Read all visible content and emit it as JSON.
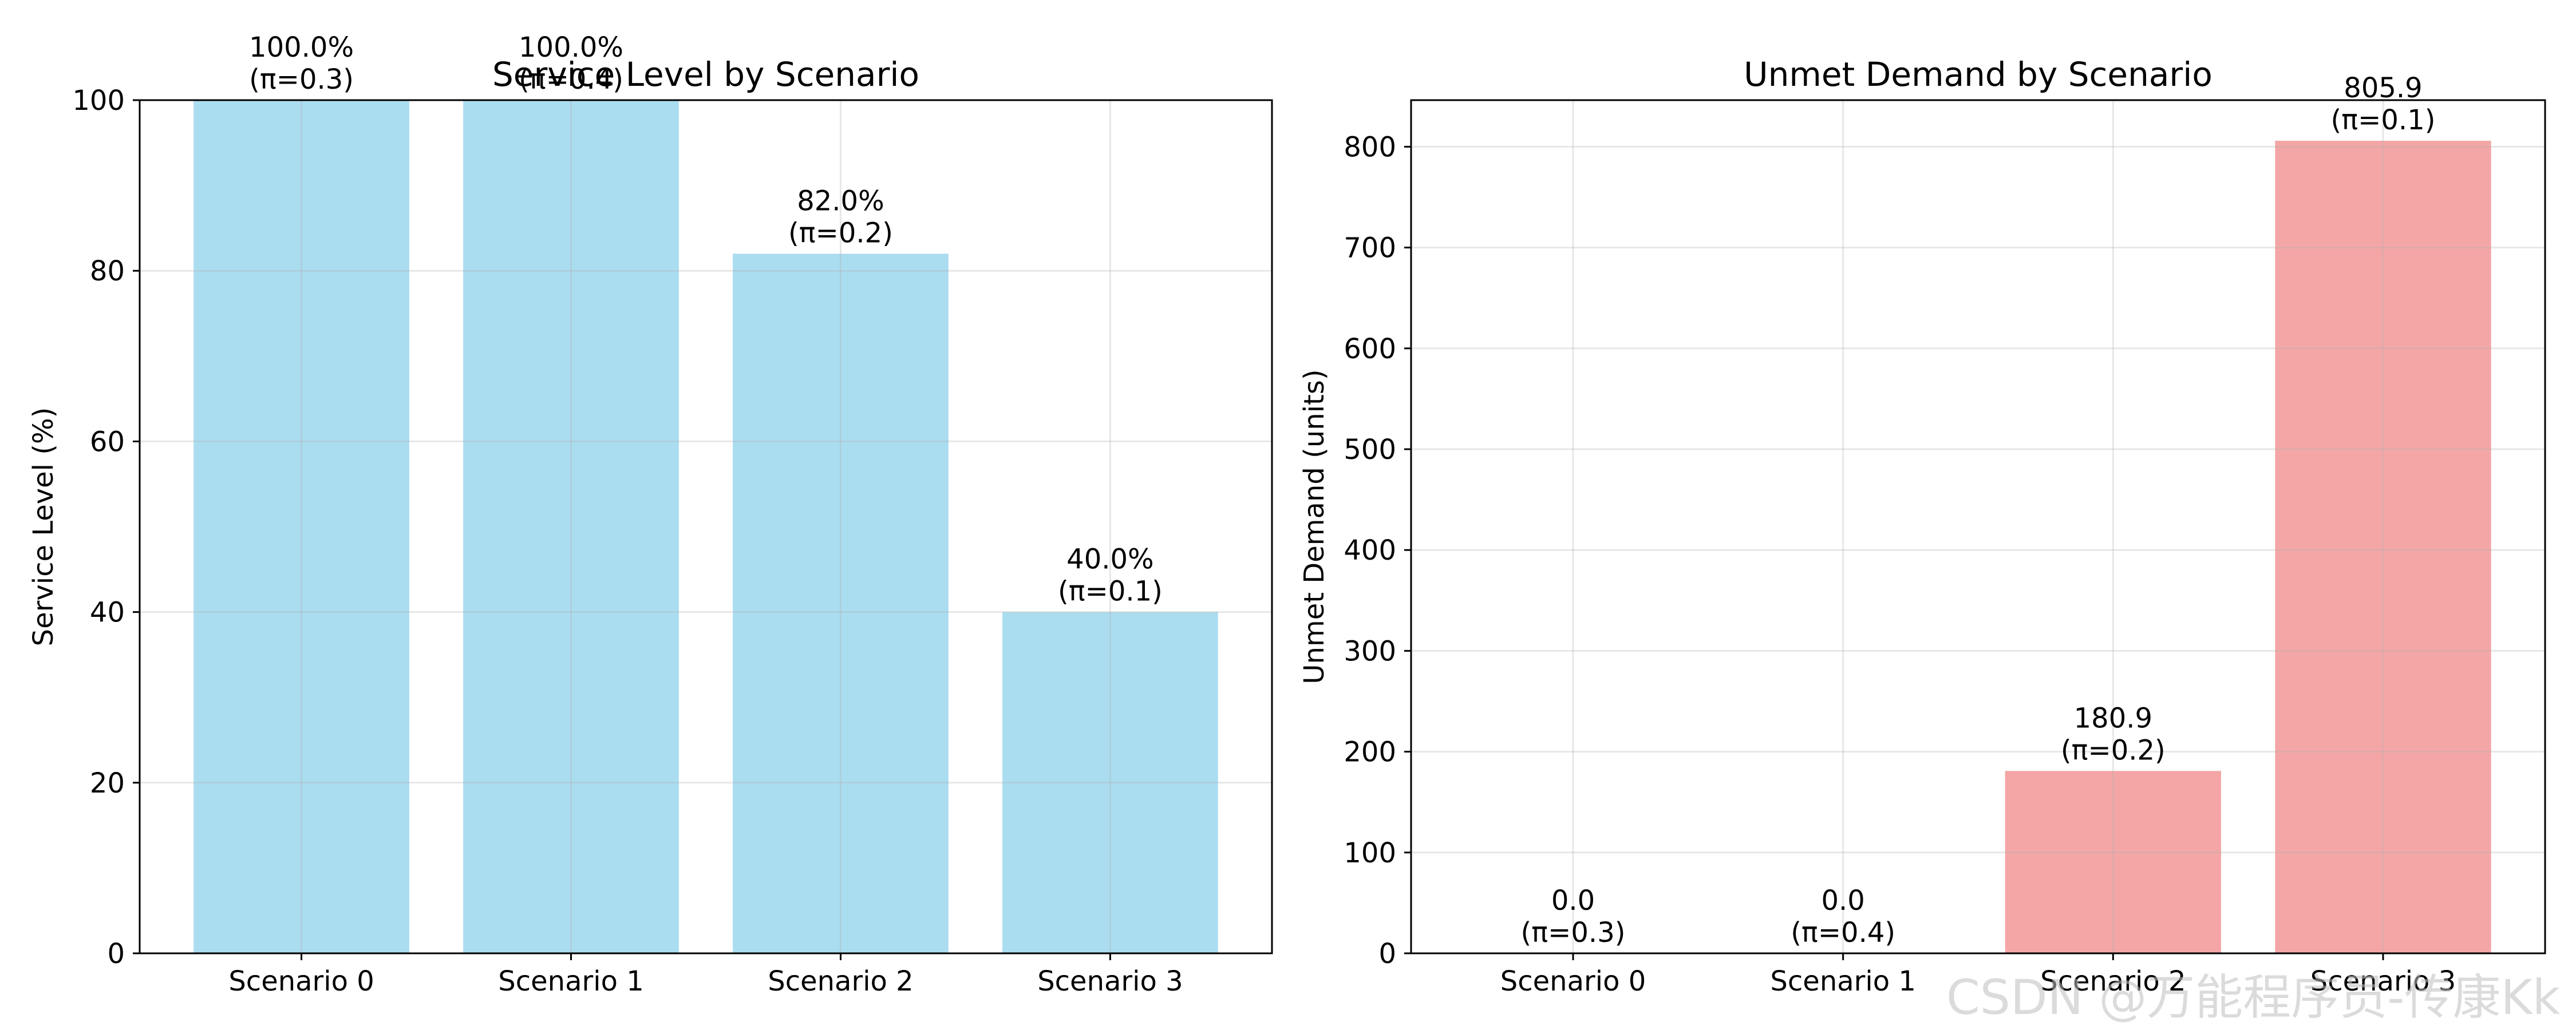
{
  "chart_data": [
    {
      "type": "bar",
      "title": "Service Level by Scenario",
      "xlabel": "",
      "ylabel": "Service Level (%)",
      "categories": [
        "Scenario 0",
        "Scenario 1",
        "Scenario 2",
        "Scenario 3"
      ],
      "values": [
        100,
        100,
        82,
        40
      ],
      "bar_labels": [
        "100.0%\n(π=0.3)",
        "100.0%\n(π=0.4)",
        "82.0%\n(π=0.2)",
        "40.0%\n(π=0.1)"
      ],
      "ylim": [
        0,
        100
      ],
      "yticks": [
        0,
        20,
        40,
        60,
        80,
        100
      ],
      "grid": true,
      "color": "#87CEEB"
    },
    {
      "type": "bar",
      "title": "Unmet Demand by Scenario",
      "xlabel": "",
      "ylabel": "Unmet Demand (units)",
      "categories": [
        "Scenario 0",
        "Scenario 1",
        "Scenario 2",
        "Scenario 3"
      ],
      "values": [
        0.0,
        0.0,
        180.9,
        805.9
      ],
      "bar_labels": [
        "0.0\n(π=0.3)",
        "0.0\n(π=0.4)",
        "180.9\n(π=0.2)",
        "805.9\n(π=0.1)"
      ],
      "ylim": [
        0,
        846.2
      ],
      "yticks": [
        0,
        100,
        200,
        300,
        400,
        500,
        600,
        700,
        800
      ],
      "grid": true,
      "color": "#F08080"
    }
  ],
  "watermark": "CSDN @万能程序员-传康Kk"
}
